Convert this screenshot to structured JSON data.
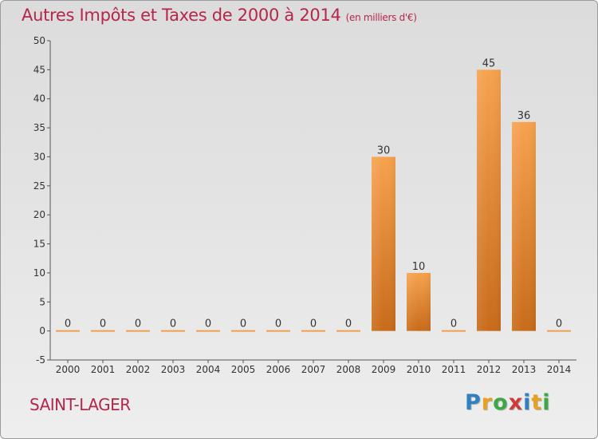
{
  "chart_data": {
    "type": "bar",
    "title": "Autres Impôts et Taxes de 2000 à 2014",
    "subtitle": "(en milliers d'€)",
    "categories": [
      "2000",
      "2001",
      "2002",
      "2003",
      "2004",
      "2005",
      "2006",
      "2007",
      "2008",
      "2009",
      "2010",
      "2011",
      "2012",
      "2013",
      "2014"
    ],
    "values": [
      0,
      0,
      0,
      0,
      0,
      0,
      0,
      0,
      0,
      30,
      10,
      0,
      45,
      36,
      0
    ],
    "ylim": [
      -5,
      50
    ],
    "yticks": [
      -5,
      0,
      5,
      10,
      15,
      20,
      25,
      30,
      35,
      40,
      45,
      50
    ],
    "grid": false,
    "bar_color": "#f0a04b"
  },
  "place_name": "SAINT-LAGER",
  "logo": {
    "letters": [
      "P",
      "r",
      "o",
      "x",
      "i",
      "t",
      "i"
    ],
    "colors": [
      "#2f7fc1",
      "#e8a020",
      "#3aa845",
      "#d13a3a",
      "#2f7fc1",
      "#e8a020",
      "#3aa845"
    ]
  }
}
